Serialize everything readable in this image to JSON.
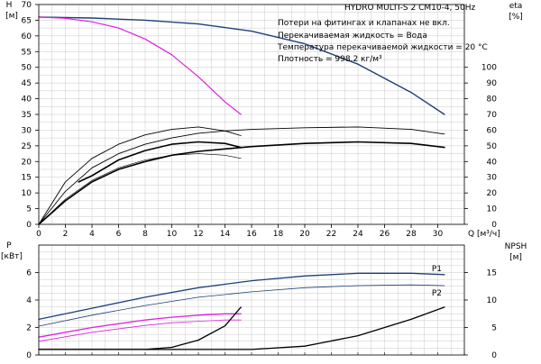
{
  "title": "HYDRO MULTI-S 2 CM10-4, 50Hz",
  "notes": [
    "Потери на фитингах и клапанах не вкл.",
    "Перекачиваемая жидкость = Вода",
    "Температура перекачиваемой жидкости = 20 °C",
    "Плотность = 998.2 кг/м³"
  ],
  "colors": {
    "navy": "#1f3f78",
    "magenta": "#e020e0",
    "black": "#000000",
    "grid": "#c8c8c8"
  },
  "chart_data": [
    {
      "type": "line",
      "name": "head-efficiency",
      "xlabel": "Q [м³/ч]",
      "ylabel_left": [
        "H",
        "[м]"
      ],
      "ylabel_right": [
        "eta",
        "[%]"
      ],
      "xlim": [
        0,
        32
      ],
      "ylim_left": [
        0,
        70
      ],
      "ylim_right": [
        0,
        140
      ],
      "x_ticks": [
        0,
        2,
        4,
        6,
        8,
        10,
        12,
        14,
        16,
        18,
        20,
        22,
        24,
        26,
        28,
        30
      ],
      "y_ticks_left": [
        0,
        5,
        10,
        15,
        20,
        25,
        30,
        35,
        40,
        45,
        50,
        55,
        60,
        65,
        70
      ],
      "y_ticks_right": [
        0,
        10,
        20,
        30,
        40,
        50,
        60,
        70,
        80,
        90,
        100
      ],
      "grid": true,
      "series": [
        {
          "axis": "left",
          "color": "navy",
          "width": 1.4,
          "x": [
            0,
            4,
            8,
            12,
            16,
            20,
            24,
            28,
            30.5
          ],
          "y": [
            66,
            65.7,
            65,
            63.8,
            61.5,
            57.5,
            51,
            42,
            35
          ]
        },
        {
          "axis": "left",
          "color": "magenta",
          "width": 1.2,
          "x": [
            0,
            2,
            4,
            6,
            8,
            10,
            12,
            14,
            15.2
          ],
          "y": [
            66,
            65.6,
            64.5,
            62.5,
            59,
            54,
            47,
            39,
            35
          ]
        },
        {
          "axis": "right",
          "color": "black",
          "width": 1.6,
          "x": [
            0,
            2,
            4,
            6,
            8,
            10,
            12,
            14,
            16,
            20,
            24,
            28,
            30.5
          ],
          "y": [
            0,
            15,
            27,
            35,
            40,
            44,
            46.5,
            48,
            49.5,
            51.5,
            52.5,
            51.5,
            49
          ]
        },
        {
          "axis": "right",
          "color": "black",
          "width": 0.9,
          "x": [
            0,
            2,
            4,
            6,
            8,
            10,
            12,
            14,
            16,
            20,
            24,
            28,
            30.5
          ],
          "y": [
            0,
            21,
            36,
            45,
            51,
            55,
            58,
            59.5,
            60.5,
            61.5,
            62,
            60.5,
            57.5
          ]
        },
        {
          "axis": "right",
          "color": "black",
          "width": 0.6,
          "x": [
            0,
            2,
            4,
            6,
            8,
            10,
            12,
            14,
            15.2
          ],
          "y": [
            0,
            16,
            28,
            36,
            41,
            44,
            45,
            44,
            42
          ]
        },
        {
          "axis": "right",
          "color": "black",
          "width": 1.6,
          "x": [
            3,
            4,
            6,
            8,
            10,
            12,
            14,
            15.2
          ],
          "y": [
            27,
            31,
            41,
            47,
            51,
            52.5,
            51.5,
            49
          ]
        },
        {
          "axis": "right",
          "color": "black",
          "width": 0.9,
          "x": [
            0,
            2,
            4,
            6,
            8,
            10,
            12,
            14,
            15.2
          ],
          "y": [
            0,
            27,
            42,
            51,
            57,
            60.5,
            62,
            59.5,
            56.5
          ]
        }
      ]
    },
    {
      "type": "line",
      "name": "power-npsh",
      "ylabel_left": [
        "P",
        "[кВт]"
      ],
      "ylabel_right": [
        "NPSH",
        "[м]"
      ],
      "xlim": [
        0,
        32
      ],
      "ylim_left": [
        0,
        8
      ],
      "ylim_right": [
        0,
        20
      ],
      "y_ticks_left": [
        0,
        2,
        4,
        6
      ],
      "y_ticks_right": [
        0,
        5,
        10,
        15
      ],
      "grid": true,
      "series_labels": [
        "P1",
        "P2"
      ],
      "series": [
        {
          "axis": "left",
          "color": "navy",
          "width": 1.3,
          "name": "P1",
          "x": [
            0,
            4,
            8,
            12,
            16,
            20,
            24,
            28,
            30.5
          ],
          "y": [
            2.6,
            3.4,
            4.2,
            4.9,
            5.4,
            5.75,
            5.95,
            5.95,
            5.85
          ]
        },
        {
          "axis": "left",
          "color": "navy",
          "width": 0.8,
          "name": "P2",
          "x": [
            0,
            4,
            8,
            12,
            16,
            20,
            24,
            28,
            30.5
          ],
          "y": [
            2.1,
            2.9,
            3.6,
            4.2,
            4.6,
            4.9,
            5.05,
            5.1,
            5.05
          ]
        },
        {
          "axis": "left",
          "color": "magenta",
          "width": 1.3,
          "x": [
            0,
            4,
            8,
            10,
            12,
            14,
            15.2
          ],
          "y": [
            1.3,
            2.0,
            2.55,
            2.75,
            2.9,
            3.0,
            3.0
          ]
        },
        {
          "axis": "left",
          "color": "magenta",
          "width": 0.8,
          "x": [
            0,
            4,
            8,
            10,
            12,
            14,
            15.2
          ],
          "y": [
            1.0,
            1.65,
            2.15,
            2.35,
            2.45,
            2.55,
            2.55
          ]
        },
        {
          "axis": "right",
          "color": "black",
          "width": 1.3,
          "x": [
            0,
            8,
            10,
            12,
            14,
            15.2
          ],
          "y": [
            1,
            1,
            1.4,
            2.7,
            5.3,
            8.7
          ]
        },
        {
          "axis": "right",
          "color": "black",
          "width": 1.3,
          "x": [
            0,
            10,
            16,
            20,
            24,
            28,
            30.5
          ],
          "y": [
            1,
            1,
            1,
            1.6,
            3.5,
            6.5,
            8.7
          ]
        }
      ]
    }
  ]
}
